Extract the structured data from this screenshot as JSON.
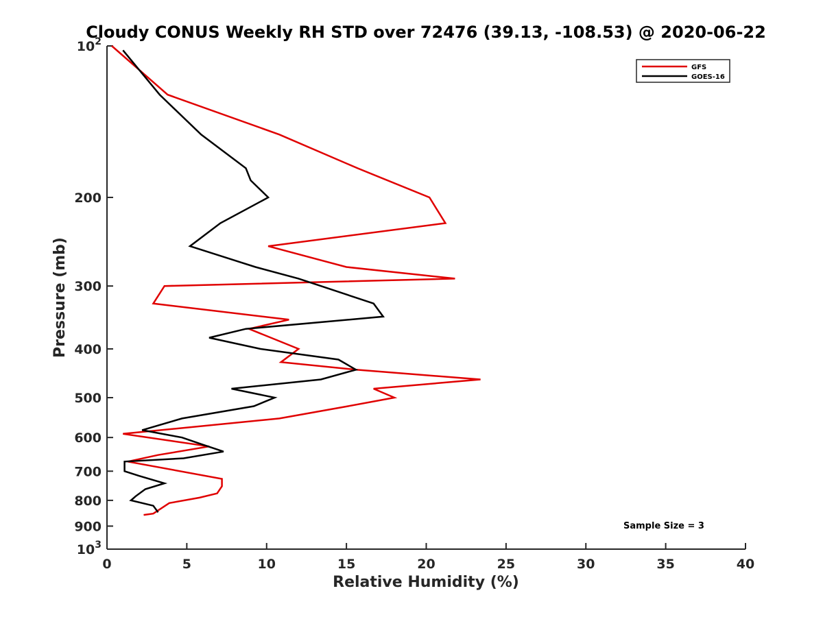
{
  "chart_data": {
    "type": "line",
    "title": "Cloudy CONUS Weekly RH STD over 72476 (39.13, -108.53) @ 2020-06-22",
    "xlabel": "Relative Humidity (%)",
    "ylabel": "Pressure (mb)",
    "xlim": [
      0,
      40
    ],
    "ylim": [
      100,
      1000
    ],
    "y_scale": "log",
    "y_reversed": true,
    "grid": false,
    "legend_position": "top-right",
    "x_ticks": [
      "0",
      "5",
      "10",
      "15",
      "20",
      "25",
      "30",
      "35",
      "40"
    ],
    "y_ticks": [
      {
        "value": 100,
        "base": "10",
        "exp": "2"
      },
      {
        "value": 200,
        "label": "200"
      },
      {
        "value": 300,
        "label": "300"
      },
      {
        "value": 400,
        "label": "400"
      },
      {
        "value": 500,
        "label": "500"
      },
      {
        "value": 600,
        "label": "600"
      },
      {
        "value": 700,
        "label": "700"
      },
      {
        "value": 800,
        "label": "800"
      },
      {
        "value": 900,
        "label": "900"
      },
      {
        "value": 1000,
        "base": "10",
        "exp": "3"
      }
    ],
    "series": [
      {
        "name": "GFS",
        "color": "#e00000",
        "points": [
          [
            0.3,
            100
          ],
          [
            3.8,
            125
          ],
          [
            10.8,
            150
          ],
          [
            15.7,
            175
          ],
          [
            20.2,
            200
          ],
          [
            21.2,
            225
          ],
          [
            10.1,
            250
          ],
          [
            15.0,
            275
          ],
          [
            21.8,
            290
          ],
          [
            3.6,
            300
          ],
          [
            2.9,
            325
          ],
          [
            11.4,
            350
          ],
          [
            8.9,
            365
          ],
          [
            12.0,
            400
          ],
          [
            10.9,
            425
          ],
          [
            15.6,
            440
          ],
          [
            23.4,
            460
          ],
          [
            16.7,
            480
          ],
          [
            18.0,
            500
          ],
          [
            15.1,
            520
          ],
          [
            10.8,
            550
          ],
          [
            1.0,
            590
          ],
          [
            6.4,
            625
          ],
          [
            3.2,
            650
          ],
          [
            1.3,
            670
          ],
          [
            7.2,
            725
          ],
          [
            7.2,
            750
          ],
          [
            6.9,
            775
          ],
          [
            5.8,
            790
          ],
          [
            3.9,
            810
          ],
          [
            2.9,
            850
          ],
          [
            2.3,
            855
          ]
        ]
      },
      {
        "name": "GOES-16",
        "color": "#000000",
        "points": [
          [
            1.0,
            102
          ],
          [
            3.3,
            125
          ],
          [
            5.9,
            150
          ],
          [
            8.7,
            175
          ],
          [
            9.0,
            185
          ],
          [
            10.1,
            200
          ],
          [
            7.1,
            225
          ],
          [
            5.2,
            250
          ],
          [
            9.3,
            275
          ],
          [
            12.0,
            290
          ],
          [
            13.4,
            300
          ],
          [
            16.7,
            325
          ],
          [
            17.3,
            345
          ],
          [
            8.7,
            365
          ],
          [
            6.4,
            380
          ],
          [
            9.6,
            400
          ],
          [
            14.5,
            420
          ],
          [
            15.6,
            440
          ],
          [
            13.4,
            460
          ],
          [
            7.8,
            480
          ],
          [
            10.5,
            500
          ],
          [
            9.2,
            520
          ],
          [
            4.7,
            550
          ],
          [
            2.2,
            580
          ],
          [
            4.7,
            600
          ],
          [
            6.0,
            620
          ],
          [
            7.3,
            640
          ],
          [
            4.8,
            660
          ],
          [
            1.1,
            670
          ],
          [
            1.1,
            700
          ],
          [
            2.0,
            715
          ],
          [
            3.6,
            740
          ],
          [
            2.4,
            760
          ],
          [
            1.8,
            785
          ],
          [
            1.5,
            800
          ],
          [
            2.9,
            820
          ],
          [
            3.2,
            845
          ]
        ]
      }
    ],
    "annotations": [
      "Sample Size = 3"
    ]
  }
}
